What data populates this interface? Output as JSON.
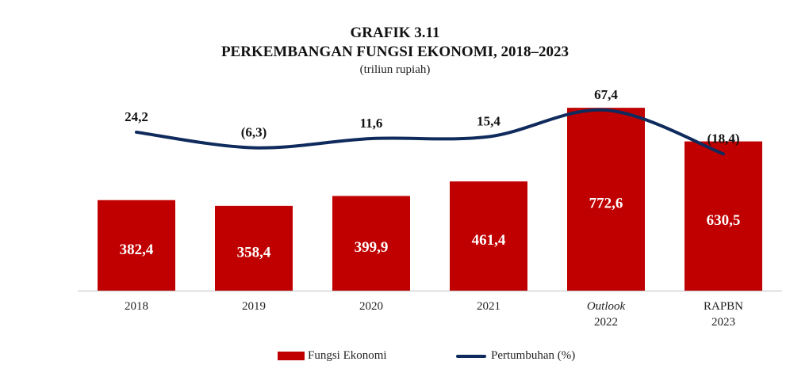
{
  "chart_data": {
    "type": "bar",
    "title": "GRAFIK 3.11",
    "subtitle": "PERKEMBANGAN FUNGSI EKONOMI, 2018–2023",
    "unit": "(triliun rupiah)",
    "categories": [
      {
        "line1": "2018",
        "line1_italic": false,
        "line2": ""
      },
      {
        "line1": "2019",
        "line1_italic": false,
        "line2": ""
      },
      {
        "line1": "2020",
        "line1_italic": false,
        "line2": ""
      },
      {
        "line1": "2021",
        "line1_italic": false,
        "line2": ""
      },
      {
        "line1": "Outlook",
        "line1_italic": true,
        "line2": "2022"
      },
      {
        "line1": "RAPBN",
        "line1_italic": false,
        "line2": "2023"
      }
    ],
    "series": [
      {
        "name": "Fungsi Ekonomi",
        "kind": "bar",
        "color": "#c00000",
        "values": [
          382.4,
          358.4,
          399.9,
          461.4,
          772.6,
          630.5
        ],
        "labels": [
          "382,4",
          "358,4",
          "399,9",
          "461,4",
          "772,6",
          "630,5"
        ]
      },
      {
        "name": "Pertumbuhan (%)",
        "kind": "line",
        "color": "#0f2a5c",
        "values": [
          24.2,
          -6.3,
          11.6,
          15.4,
          67.4,
          -18.4
        ],
        "labels": [
          "24,2",
          "(6,3)",
          "11,6",
          "15,4",
          "67,4",
          "(18,4)"
        ]
      }
    ],
    "bar_axis_range": [
      0,
      860
    ],
    "line_axis_range": [
      -120,
      100
    ],
    "legend_position": "bottom"
  }
}
